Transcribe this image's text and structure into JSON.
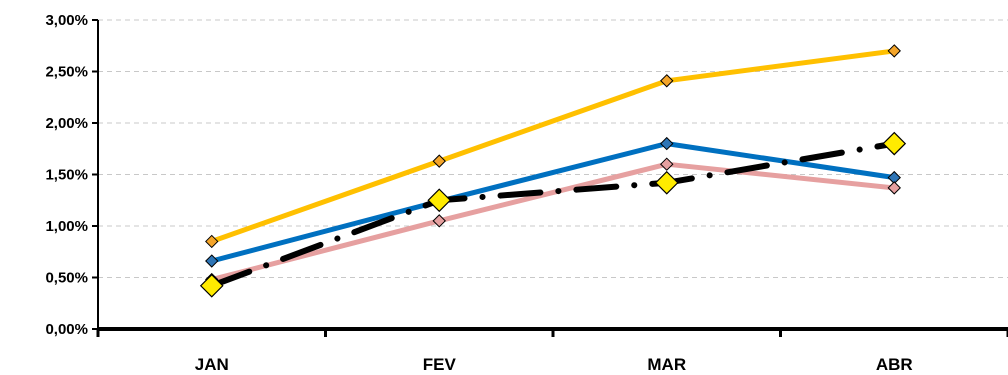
{
  "chart_data": {
    "type": "line",
    "categories": [
      "JAN",
      "FEV",
      "MAR",
      "ABR"
    ],
    "ylim": [
      0,
      3.0
    ],
    "y_tick_step": 0.5,
    "y_tick_labels": [
      "0,00%",
      "0,50%",
      "1,00%",
      "1,50%",
      "2,00%",
      "2,50%",
      "3,00%"
    ],
    "grid": true,
    "legend": "none",
    "series": [
      {
        "values": [
          0.85,
          1.63,
          2.41,
          2.7
        ],
        "color": "#FFC000",
        "marker_color": "#F4A52A",
        "style": "solid"
      },
      {
        "values": [
          0.66,
          1.24,
          1.8,
          1.47
        ],
        "color": "#0070C0",
        "marker_color": "#2E75B6",
        "style": "solid"
      },
      {
        "values": [
          0.48,
          1.05,
          1.6,
          1.37
        ],
        "color": "#E6A0A0",
        "marker_color": "#E6A0A0",
        "style": "solid"
      },
      {
        "values": [
          0.42,
          1.25,
          1.42,
          1.8
        ],
        "color": "#000000",
        "marker_color": "#FFEB00",
        "style": "dash-dot"
      }
    ]
  }
}
